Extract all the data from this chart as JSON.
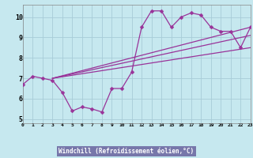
{
  "background_color": "#c6e8ef",
  "line_color": "#993399",
  "grid_color": "#a8ccd8",
  "xlabel": "Windchill (Refroidissement éolien,°C)",
  "xlabel_bg": "#7777aa",
  "xlim": [
    0,
    23
  ],
  "ylim": [
    4.8,
    10.6
  ],
  "yticks": [
    5,
    6,
    7,
    8,
    9,
    10
  ],
  "xticks": [
    0,
    1,
    2,
    3,
    4,
    5,
    6,
    7,
    8,
    9,
    10,
    11,
    12,
    13,
    14,
    15,
    16,
    17,
    18,
    19,
    20,
    21,
    22,
    23
  ],
  "main_x": [
    0,
    1,
    2,
    3,
    4,
    5,
    6,
    7,
    8,
    9,
    10,
    11,
    12,
    13,
    14,
    15,
    16,
    17,
    18,
    19,
    20,
    21,
    22,
    23
  ],
  "main_y": [
    6.7,
    7.1,
    7.0,
    6.9,
    6.3,
    5.4,
    5.6,
    5.5,
    5.35,
    6.5,
    6.5,
    7.3,
    9.5,
    10.3,
    10.3,
    9.5,
    10.0,
    10.2,
    10.1,
    9.5,
    9.3,
    9.3,
    8.5,
    9.5
  ],
  "trend1_x": [
    3,
    23
  ],
  "trend1_y": [
    7.0,
    9.5
  ],
  "trend2_x": [
    3,
    23
  ],
  "trend2_y": [
    7.0,
    9.1
  ],
  "trend3_x": [
    3,
    23
  ],
  "trend3_y": [
    7.0,
    8.5
  ]
}
